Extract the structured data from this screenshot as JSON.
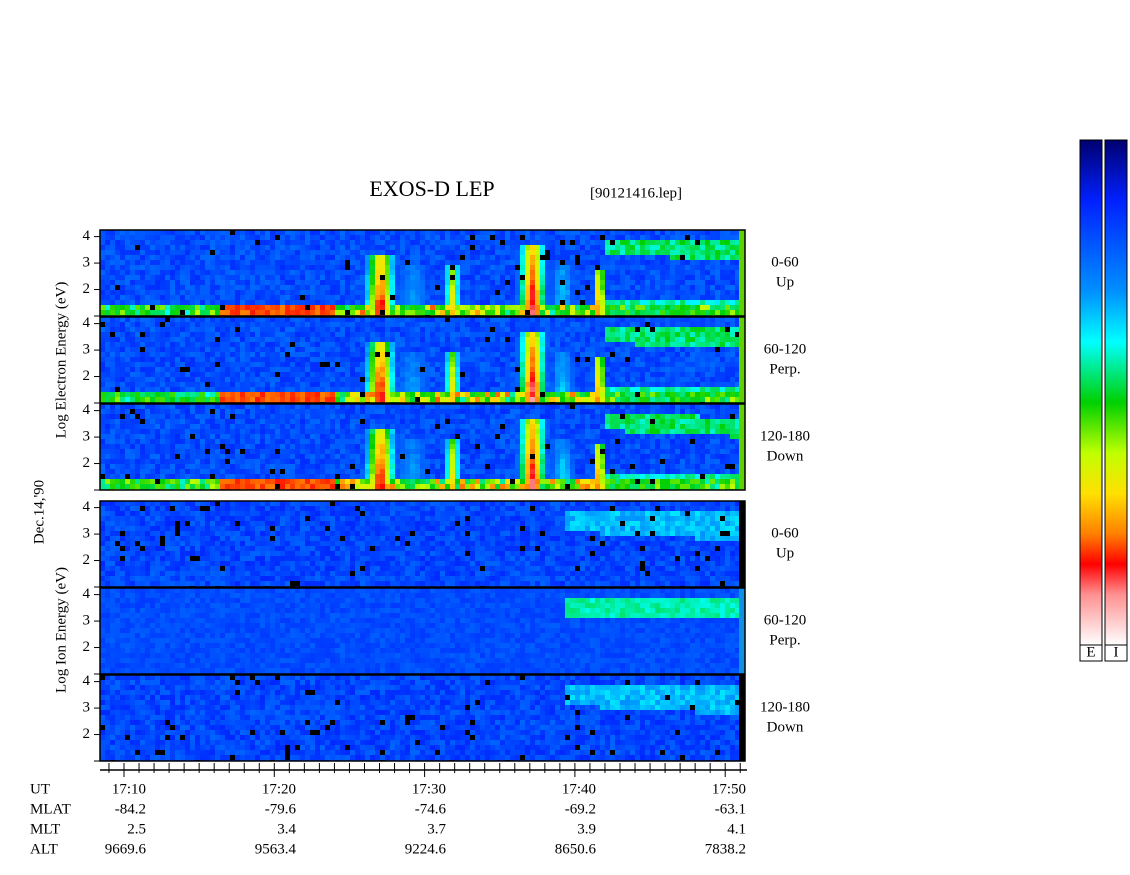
{
  "header": {
    "title": "EXOS-D LEP",
    "file": "[90121416.lep]"
  },
  "axis_labels": {
    "electron": "Log  Electron  Energy (eV)",
    "ion": "Log  Ion  Energy (eV)",
    "date": "Dec.14,'90"
  },
  "yticks": [
    {
      "value": 4,
      "label": "4"
    },
    {
      "value": 3,
      "label": "3"
    },
    {
      "value": 2,
      "label": "2"
    }
  ],
  "pitch_angles": [
    {
      "range": "0-60",
      "direction": "Up"
    },
    {
      "range": "60-120",
      "direction": "Perp."
    },
    {
      "range": "120-180",
      "direction": "Down"
    }
  ],
  "orbit": {
    "rows": [
      {
        "label": "UT",
        "values": [
          "17:10",
          "17:20",
          "17:30",
          "17:40",
          "17:50"
        ]
      },
      {
        "label": "MLAT",
        "values": [
          "-84.2",
          "-79.6",
          "-74.6",
          "-69.2",
          "-63.1"
        ]
      },
      {
        "label": "MLT",
        "values": [
          "2.5",
          "3.4",
          "3.7",
          "3.9",
          "4.1"
        ]
      },
      {
        "label": "ALT",
        "values": [
          "9669.6",
          "9563.4",
          "9224.6",
          "8650.6",
          "7838.2"
        ]
      }
    ]
  },
  "colorbar": {
    "labels": [
      "E",
      "I"
    ]
  }
}
